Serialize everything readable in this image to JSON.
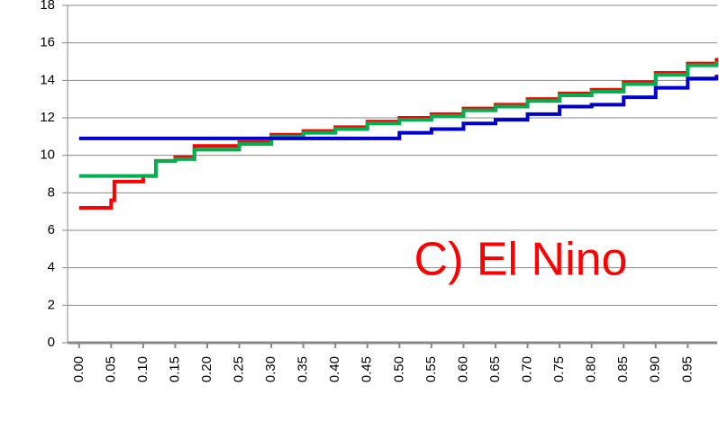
{
  "chart_data": {
    "type": "line",
    "annotation": "C) El Nino",
    "x": [
      0,
      0.05,
      0.055,
      0.1,
      0.12,
      0.125,
      0.15,
      0.18,
      0.25,
      0.3,
      0.35,
      0.4,
      0.45,
      0.5,
      0.55,
      0.6,
      0.65,
      0.7,
      0.75,
      0.8,
      0.85,
      0.9,
      0.95,
      0.995
    ],
    "series": [
      {
        "color": "#ff0000",
        "values": [
          7.2,
          7.6,
          8.6,
          8.9,
          9.7,
          9.7,
          9.9,
          10.5,
          10.7,
          11.1,
          11.3,
          11.5,
          11.8,
          12.0,
          12.2,
          12.5,
          12.7,
          13.0,
          13.3,
          13.5,
          13.9,
          14.4,
          14.9,
          15.2
        ]
      },
      {
        "color": "#00b050",
        "values": [
          8.9,
          8.9,
          8.9,
          8.9,
          9.7,
          9.7,
          9.8,
          10.3,
          10.6,
          11.0,
          11.2,
          11.4,
          11.7,
          11.9,
          12.1,
          12.4,
          12.6,
          12.9,
          13.2,
          13.4,
          13.8,
          14.3,
          14.8,
          15.0
        ]
      },
      {
        "color": "#0000cc",
        "values": [
          10.9,
          10.9,
          10.9,
          10.9,
          10.9,
          10.9,
          10.9,
          10.9,
          10.9,
          10.9,
          10.9,
          10.9,
          10.9,
          11.2,
          11.4,
          11.7,
          11.9,
          12.2,
          12.6,
          12.7,
          13.1,
          13.6,
          14.1,
          14.3
        ]
      }
    ],
    "step": true,
    "xlim": [
      -0.018,
      0.996
    ],
    "xticks": [
      {
        "value": 0,
        "label": "0.00"
      },
      {
        "value": 0.05,
        "label": "0.05"
      },
      {
        "value": 0.1,
        "label": "0.10"
      },
      {
        "value": 0.15,
        "label": "0.15"
      },
      {
        "value": 0.2,
        "label": "0.20"
      },
      {
        "value": 0.25,
        "label": "0.25"
      },
      {
        "value": 0.3,
        "label": "0.30"
      },
      {
        "value": 0.35,
        "label": "0.35"
      },
      {
        "value": 0.4,
        "label": "0.40"
      },
      {
        "value": 0.45,
        "label": "0.45"
      },
      {
        "value": 0.5,
        "label": "0.50"
      },
      {
        "value": 0.55,
        "label": "0.55"
      },
      {
        "value": 0.6,
        "label": "0.60"
      },
      {
        "value": 0.65,
        "label": "0.65"
      },
      {
        "value": 0.7,
        "label": "0.70"
      },
      {
        "value": 0.75,
        "label": "0.75"
      },
      {
        "value": 0.8,
        "label": "0.80"
      },
      {
        "value": 0.85,
        "label": "0.85"
      },
      {
        "value": 0.9,
        "label": "0.90"
      },
      {
        "value": 0.95,
        "label": "0.95"
      }
    ],
    "ylim": [
      0,
      18
    ],
    "yticks": [
      0,
      2,
      4,
      6,
      8,
      10,
      12,
      14,
      16,
      18
    ],
    "grid": true
  }
}
